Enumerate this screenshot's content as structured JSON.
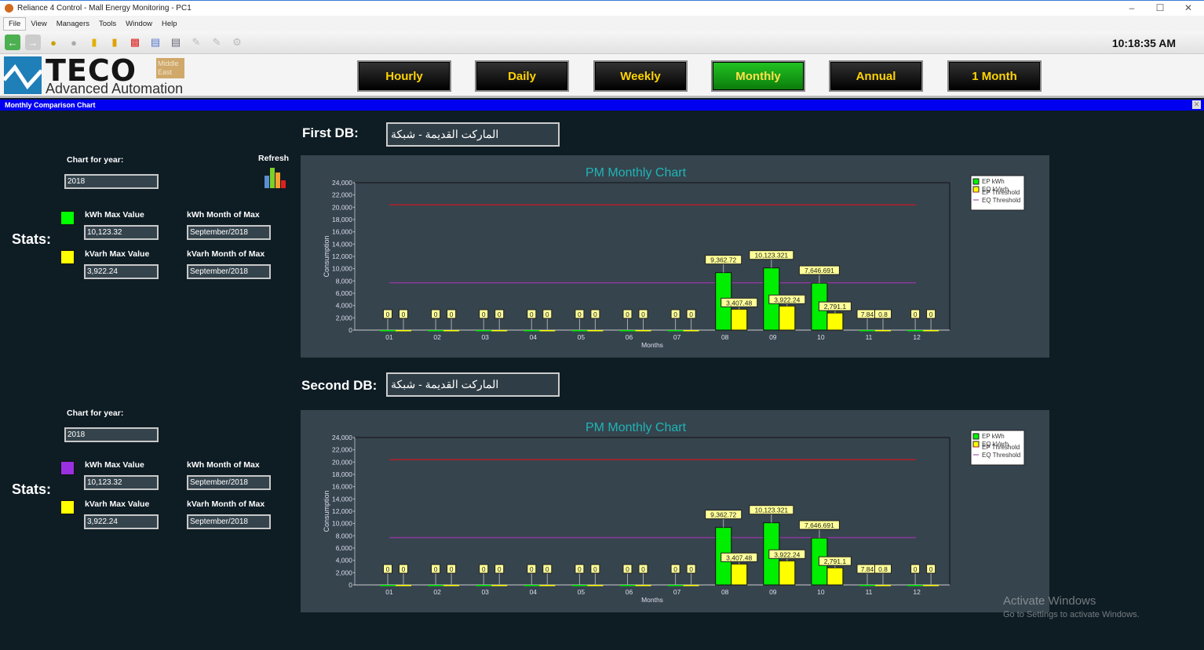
{
  "window": {
    "title": "Reliance 4 Control - Mall Energy Monitoring - PC1"
  },
  "menu": [
    "File",
    "View",
    "Managers",
    "Tools",
    "Window",
    "Help"
  ],
  "toolbar": {
    "icons": [
      "back-icon",
      "forward-icon",
      "add-user-icon",
      "remove-user-icon",
      "report-icon",
      "folder-report-icon",
      "bar-chart-icon",
      "document-icon",
      "print-preview-icon",
      "edit-icon",
      "edit2-icon",
      "settings-icon"
    ]
  },
  "clock": "10:18:35 AM",
  "logo": {
    "brand": "TECO",
    "badge": "Middle East",
    "tagline": "Advanced Automation"
  },
  "periods": [
    {
      "label": "Hourly",
      "active": false
    },
    {
      "label": "Daily",
      "active": false
    },
    {
      "label": "Weekly",
      "active": false
    },
    {
      "label": "Monthly",
      "active": true
    },
    {
      "label": "Annual",
      "active": false
    },
    {
      "label": "1 Month",
      "active": false
    }
  ],
  "subwindow_title": "Monthly Comparison Chart",
  "refresh_label": "Refresh",
  "sections": [
    {
      "db_label": "First DB:",
      "db_value": "الماركت القديمة - شبكة",
      "year_label": "Chart for year:",
      "year": "2018",
      "stats_label": "Stats:",
      "kwh_color": "#00ff00",
      "kvarh_color": "#ffff00",
      "kwh_max_label": "kWh Max Value",
      "kwh_max": "10,123.32",
      "kwh_month_label": "kWh Month of Max",
      "kwh_month": "September/2018",
      "kvarh_max_label": "kVarh Max Value",
      "kvarh_max": "3,922.24",
      "kvarh_month_label": "kVarh Month of Max",
      "kvarh_month": "September/2018"
    },
    {
      "db_label": "Second DB:",
      "db_value": "الماركت القديمة - شبكة",
      "year_label": "Chart for year:",
      "year": "2018",
      "stats_label": "Stats:",
      "kwh_color": "#9b30e0",
      "kvarh_color": "#ffff00",
      "kwh_max_label": "kWh Max Value",
      "kwh_max": "10,123.32",
      "kwh_month_label": "kWh Month of Max",
      "kwh_month": "September/2018",
      "kvarh_max_label": "kVarh Max Value",
      "kvarh_max": "3,922.24",
      "kvarh_month_label": "kVarh Month of Max",
      "kvarh_month": "September/2018"
    }
  ],
  "chart_data": [
    {
      "type": "bar",
      "title": "PM Monthly Chart",
      "xlabel": "Months",
      "ylabel": "Consumption",
      "ylim": [
        0,
        24000
      ],
      "yticks": [
        "0",
        "2,000",
        "4,000",
        "6,000",
        "8,000",
        "10,000",
        "12,000",
        "14,000",
        "16,000",
        "18,000",
        "20,000",
        "22,000",
        "24,000"
      ],
      "categories": [
        "01",
        "02",
        "03",
        "04",
        "05",
        "06",
        "07",
        "08",
        "09",
        "10",
        "11",
        "12"
      ],
      "series": [
        {
          "name": "EP kWh",
          "color": "#00ee00",
          "values": [
            0,
            0,
            0,
            0,
            0,
            0,
            0,
            9362.72,
            10123.321,
            7646.691,
            7.84,
            0
          ],
          "labels": [
            "0",
            "0",
            "0",
            "0",
            "0",
            "0",
            "0",
            "9,362.72",
            "10,123.321",
            "7,646.691",
            "7.84",
            "0"
          ]
        },
        {
          "name": "EQ kVarh",
          "color": "#ffff00",
          "values": [
            0,
            0,
            0,
            0,
            0,
            0,
            0,
            3407.48,
            3922.24,
            2791.1,
            0.8,
            0
          ],
          "labels": [
            "0",
            "0",
            "0",
            "0",
            "0",
            "0",
            "0",
            "3,407.48",
            "3,922.24",
            "2,791.1",
            "0.8",
            "0"
          ]
        }
      ],
      "thresholds": [
        {
          "name": "EP Threshold",
          "color": "#b0202a",
          "value": 20400
        },
        {
          "name": "EQ Threshold",
          "color": "#8a3a9a",
          "value": 7700
        }
      ],
      "legend": "top-right"
    },
    {
      "type": "bar",
      "title": "PM Monthly Chart",
      "xlabel": "Months",
      "ylabel": "Consumption",
      "ylim": [
        0,
        24000
      ],
      "yticks": [
        "0",
        "2,000",
        "4,000",
        "6,000",
        "8,000",
        "10,000",
        "12,000",
        "14,000",
        "16,000",
        "18,000",
        "20,000",
        "22,000",
        "24,000"
      ],
      "categories": [
        "01",
        "02",
        "03",
        "04",
        "05",
        "06",
        "07",
        "08",
        "09",
        "10",
        "11",
        "12"
      ],
      "series": [
        {
          "name": "EP kWh",
          "color": "#00ee00",
          "values": [
            0,
            0,
            0,
            0,
            0,
            0,
            0,
            9362.72,
            10123.321,
            7646.691,
            7.84,
            0
          ],
          "labels": [
            "0",
            "0",
            "0",
            "0",
            "0",
            "0",
            "0",
            "9,362.72",
            "10,123.321",
            "7,646.691",
            "7.84",
            "0"
          ]
        },
        {
          "name": "EQ kVarh",
          "color": "#ffff00",
          "values": [
            0,
            0,
            0,
            0,
            0,
            0,
            0,
            3407.48,
            3922.24,
            2791.1,
            0.8,
            0
          ],
          "labels": [
            "0",
            "0",
            "0",
            "0",
            "0",
            "0",
            "0",
            "3,407.48",
            "3,922.24",
            "2,791.1",
            "0.8",
            "0"
          ]
        }
      ],
      "thresholds": [
        {
          "name": "EP Threshold",
          "color": "#b0202a",
          "value": 20400
        },
        {
          "name": "EQ Threshold",
          "color": "#8a3a9a",
          "value": 7700
        }
      ],
      "legend": "top-right"
    }
  ],
  "watermark": {
    "title": "Activate Windows",
    "subtitle": "Go to Settings to activate Windows."
  }
}
